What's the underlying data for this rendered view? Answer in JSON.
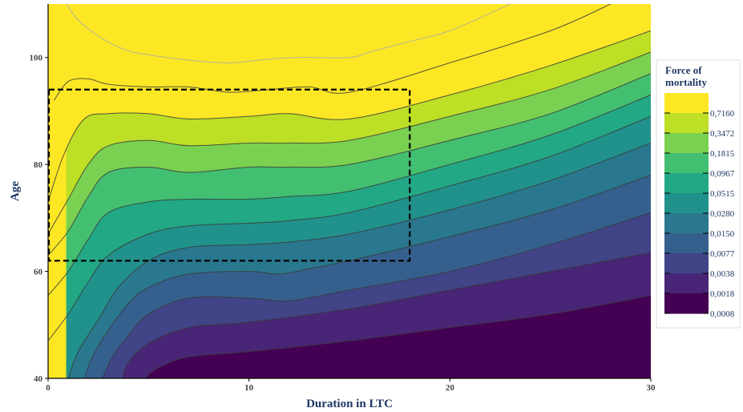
{
  "chart_data": {
    "type": "heatmap",
    "title": "",
    "xlabel": "Duration in LTC",
    "ylabel": "Age",
    "xlim": [
      0,
      30
    ],
    "ylim": [
      40,
      110
    ],
    "x_ticks": [
      0,
      10,
      20,
      30
    ],
    "y_ticks": [
      40,
      60,
      80,
      100
    ],
    "grid": false,
    "legend": {
      "title_lines": [
        "Force of",
        "mortality"
      ],
      "position": "right",
      "levels": [
        "0,7160",
        "0,3472",
        "0,1815",
        "0,0967",
        "0,0515",
        "0,0280",
        "0,0150",
        "0,0077",
        "0,0038",
        "0,0018",
        "0,0008"
      ]
    },
    "band_colors": [
      "#440154",
      "#482576",
      "#414487",
      "#35608d",
      "#2a788e",
      "#21918c",
      "#22a884",
      "#43bf71",
      "#7ad151",
      "#bddf26",
      "#fde725"
    ],
    "contour_boundaries": [
      {
        "level": "0,0008",
        "points": [
          [
            4.8,
            40
          ],
          [
            5.5,
            42
          ],
          [
            7,
            44
          ],
          [
            10,
            45
          ],
          [
            15,
            47
          ],
          [
            20,
            49.5
          ],
          [
            25,
            52
          ],
          [
            30,
            55.5
          ]
        ]
      },
      {
        "level": "0,0018",
        "points": [
          [
            3.7,
            40
          ],
          [
            4,
            43
          ],
          [
            5,
            46.5
          ],
          [
            7,
            49.5
          ],
          [
            10,
            50.5
          ],
          [
            15,
            53
          ],
          [
            20,
            56.5
          ],
          [
            25,
            60
          ],
          [
            30,
            63.5
          ]
        ]
      },
      {
        "level": "0,0038",
        "points": [
          [
            2.7,
            40
          ],
          [
            3.2,
            44
          ],
          [
            4,
            48
          ],
          [
            5,
            52
          ],
          [
            7,
            55
          ],
          [
            10,
            55
          ],
          [
            12,
            54.5
          ],
          [
            15,
            56.5
          ],
          [
            20,
            60
          ],
          [
            25,
            65
          ],
          [
            30,
            71
          ]
        ]
      },
      {
        "level": "0,0077",
        "points": [
          [
            1.8,
            40
          ],
          [
            2.2,
            44
          ],
          [
            3,
            49
          ],
          [
            4,
            54
          ],
          [
            5,
            57
          ],
          [
            7,
            59.5
          ],
          [
            10,
            60
          ],
          [
            11.5,
            59.5
          ],
          [
            13,
            60.5
          ],
          [
            15,
            62
          ],
          [
            20,
            66.5
          ],
          [
            25,
            71.5
          ],
          [
            30,
            78
          ]
        ]
      },
      {
        "level": "0,0150",
        "points": [
          [
            1,
            40
          ],
          [
            1.5,
            45
          ],
          [
            2.5,
            51
          ],
          [
            3.5,
            57
          ],
          [
            5,
            62
          ],
          [
            7,
            64.5
          ],
          [
            10,
            65
          ],
          [
            12,
            65.5
          ],
          [
            15,
            67
          ],
          [
            20,
            71.5
          ],
          [
            25,
            77
          ],
          [
            30,
            84
          ]
        ]
      },
      {
        "level": "0,0280",
        "points": [
          [
            0,
            47
          ],
          [
            1,
            52
          ],
          [
            2,
            58
          ],
          [
            3,
            63
          ],
          [
            5,
            67
          ],
          [
            7,
            68.5
          ],
          [
            10,
            69
          ],
          [
            12,
            69.5
          ],
          [
            15,
            71
          ],
          [
            20,
            76
          ],
          [
            25,
            81.5
          ],
          [
            30,
            89
          ]
        ]
      },
      {
        "level": "0,0515",
        "points": [
          [
            0,
            55.5
          ],
          [
            1,
            60
          ],
          [
            2,
            66
          ],
          [
            3,
            71
          ],
          [
            5,
            73
          ],
          [
            7,
            73.5
          ],
          [
            10,
            73.5
          ],
          [
            12,
            74
          ],
          [
            15,
            75
          ],
          [
            20,
            80
          ],
          [
            25,
            85.5
          ],
          [
            30,
            93
          ]
        ]
      },
      {
        "level": "0,0967",
        "points": [
          [
            0,
            63
          ],
          [
            1,
            67.5
          ],
          [
            2,
            74
          ],
          [
            3,
            78.5
          ],
          [
            5,
            79.5
          ],
          [
            7,
            78.5
          ],
          [
            10,
            79.5
          ],
          [
            12,
            79.5
          ],
          [
            15,
            80
          ],
          [
            20,
            84.5
          ],
          [
            25,
            89.5
          ],
          [
            30,
            97
          ]
        ]
      },
      {
        "level": "0,1815",
        "points": [
          [
            0,
            67
          ],
          [
            1,
            73.5
          ],
          [
            2,
            80
          ],
          [
            3,
            83.5
          ],
          [
            5,
            84.5
          ],
          [
            7,
            83.5
          ],
          [
            10,
            84
          ],
          [
            12,
            84
          ],
          [
            15,
            84.5
          ],
          [
            20,
            89
          ],
          [
            25,
            94
          ],
          [
            30,
            101
          ]
        ]
      },
      {
        "level": "0,3472",
        "points": [
          [
            0,
            73
          ],
          [
            0.8,
            82
          ],
          [
            1.8,
            88.5
          ],
          [
            3,
            89.5
          ],
          [
            5,
            89.5
          ],
          [
            7,
            88.5
          ],
          [
            10,
            89
          ],
          [
            12,
            89.5
          ],
          [
            15,
            88.5
          ],
          [
            20,
            93
          ],
          [
            25,
            98.5
          ],
          [
            30,
            105
          ]
        ]
      },
      {
        "level": "0,7160",
        "points": [
          [
            0.3,
            92
          ],
          [
            1,
            95.5
          ],
          [
            2,
            96
          ],
          [
            3,
            95
          ],
          [
            5,
            94.5
          ],
          [
            7,
            94.5
          ],
          [
            9,
            93.5
          ],
          [
            11,
            94
          ],
          [
            13,
            94.5
          ],
          [
            15,
            93.5
          ],
          [
            20,
            99
          ],
          [
            25,
            105
          ],
          [
            28,
            110
          ]
        ]
      },
      {
        "level": "top",
        "points": [
          [
            0.9,
            110
          ],
          [
            1.5,
            107
          ],
          [
            2.5,
            104
          ],
          [
            3.8,
            101.5
          ],
          [
            5,
            100.5
          ],
          [
            7,
            99.5
          ],
          [
            9,
            99
          ],
          [
            11,
            99.7
          ],
          [
            12.5,
            100
          ],
          [
            15,
            100
          ],
          [
            16,
            101
          ],
          [
            18,
            103
          ],
          [
            20,
            105
          ],
          [
            23,
            110
          ]
        ]
      }
    ],
    "highlight_box": {
      "x": [
        0,
        18
      ],
      "y": [
        62,
        94
      ]
    }
  }
}
